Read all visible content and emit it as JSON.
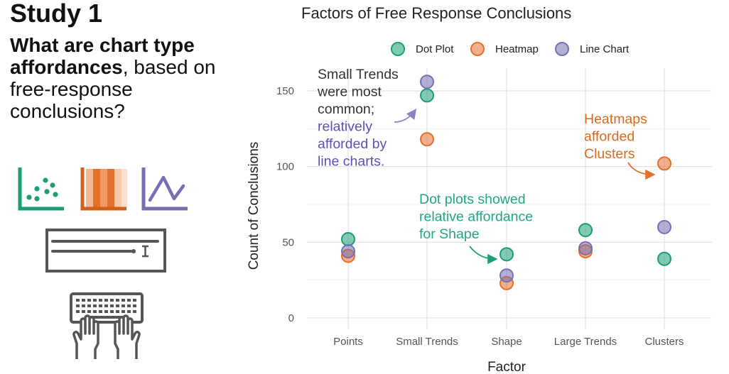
{
  "left_panel": {
    "title": "Study 1",
    "question_bold": "What are chart type affordances",
    "question_rest": ", based on free-response conclusions?"
  },
  "chart_data": {
    "type": "scatter",
    "title": "Factors of Free Response Conclusions",
    "xlabel": "Factor",
    "ylabel": "Count of Conclusions",
    "ylim": [
      -8,
      165
    ],
    "yticks": [
      0,
      50,
      100,
      150
    ],
    "categories": [
      "Points",
      "Small Trends",
      "Shape",
      "Large Trends",
      "Clusters"
    ],
    "legend_position": "top",
    "series": [
      {
        "name": "Dot Plot",
        "color": "#1b9e77",
        "values": [
          52,
          147,
          42,
          58,
          39
        ]
      },
      {
        "name": "Heatmap",
        "color": "#e66f2c",
        "values": [
          41,
          118,
          23,
          44,
          102
        ]
      },
      {
        "name": "Line Chart",
        "color": "#7570b3",
        "values": [
          44,
          156,
          28,
          46,
          60
        ]
      }
    ],
    "annotations": [
      {
        "id": "small-trends",
        "lines": [
          "Small Trends",
          "were most",
          "common;",
          "relatively",
          "afforded by",
          "line charts."
        ],
        "colors": [
          "#333333",
          "#333333",
          "#333333",
          "#5a52b8",
          "#5a52b8",
          "#5a52b8"
        ],
        "arrow_color": "#8a84c4",
        "target": "Small Trends",
        "series": "Line Chart"
      },
      {
        "id": "heatmap-clusters",
        "lines": [
          "Heatmaps",
          "afforded",
          "Clusters"
        ],
        "colors": [
          "#d9691f",
          "#d9691f",
          "#d9691f"
        ],
        "arrow_color": "#e66f2c",
        "target": "Clusters",
        "series": "Heatmap"
      },
      {
        "id": "dotplot-shape",
        "lines": [
          "Dot plots showed",
          "relative affordance",
          "for Shape"
        ],
        "colors": [
          "#20a883",
          "#20a883",
          "#20a883"
        ],
        "arrow_color": "#1b9e77",
        "target": "Shape",
        "series": "Dot Plot"
      }
    ]
  }
}
